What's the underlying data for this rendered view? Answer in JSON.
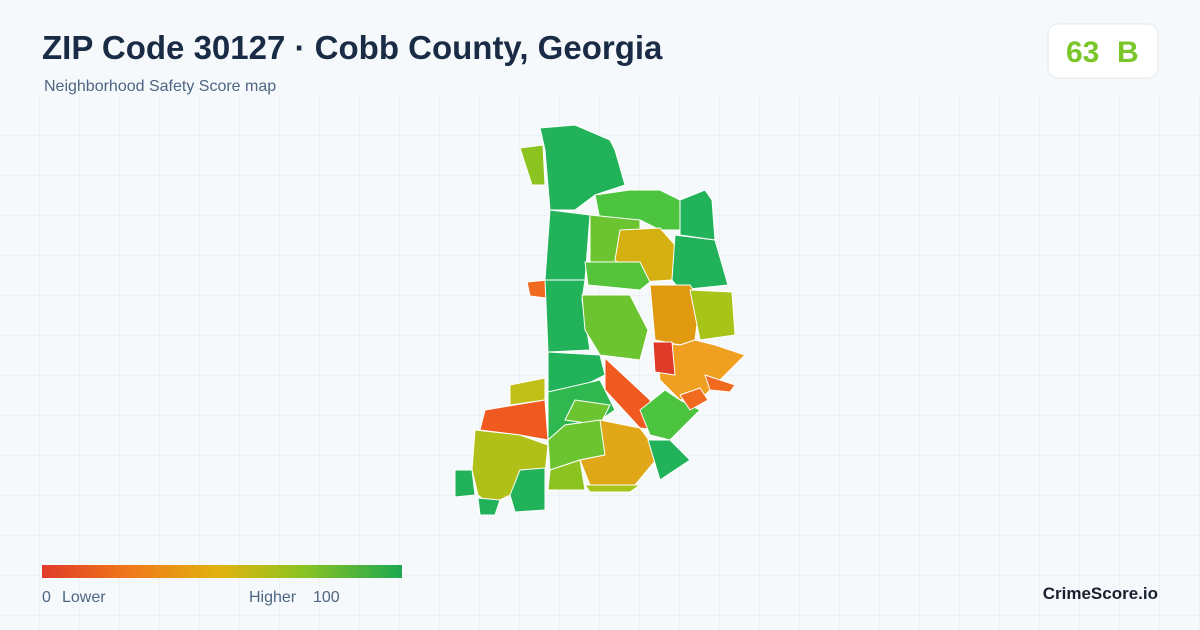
{
  "header": {
    "title": "ZIP Code 30127 · Cobb County, Georgia",
    "subtitle": "Neighborhood Safety Score map"
  },
  "score": {
    "value": 63,
    "grade": "B"
  },
  "legend": {
    "min": 0,
    "min_label": "Lower",
    "max_label": "Higher",
    "max": 100
  },
  "footer": {
    "brand": "CrimeScore.io"
  }
}
